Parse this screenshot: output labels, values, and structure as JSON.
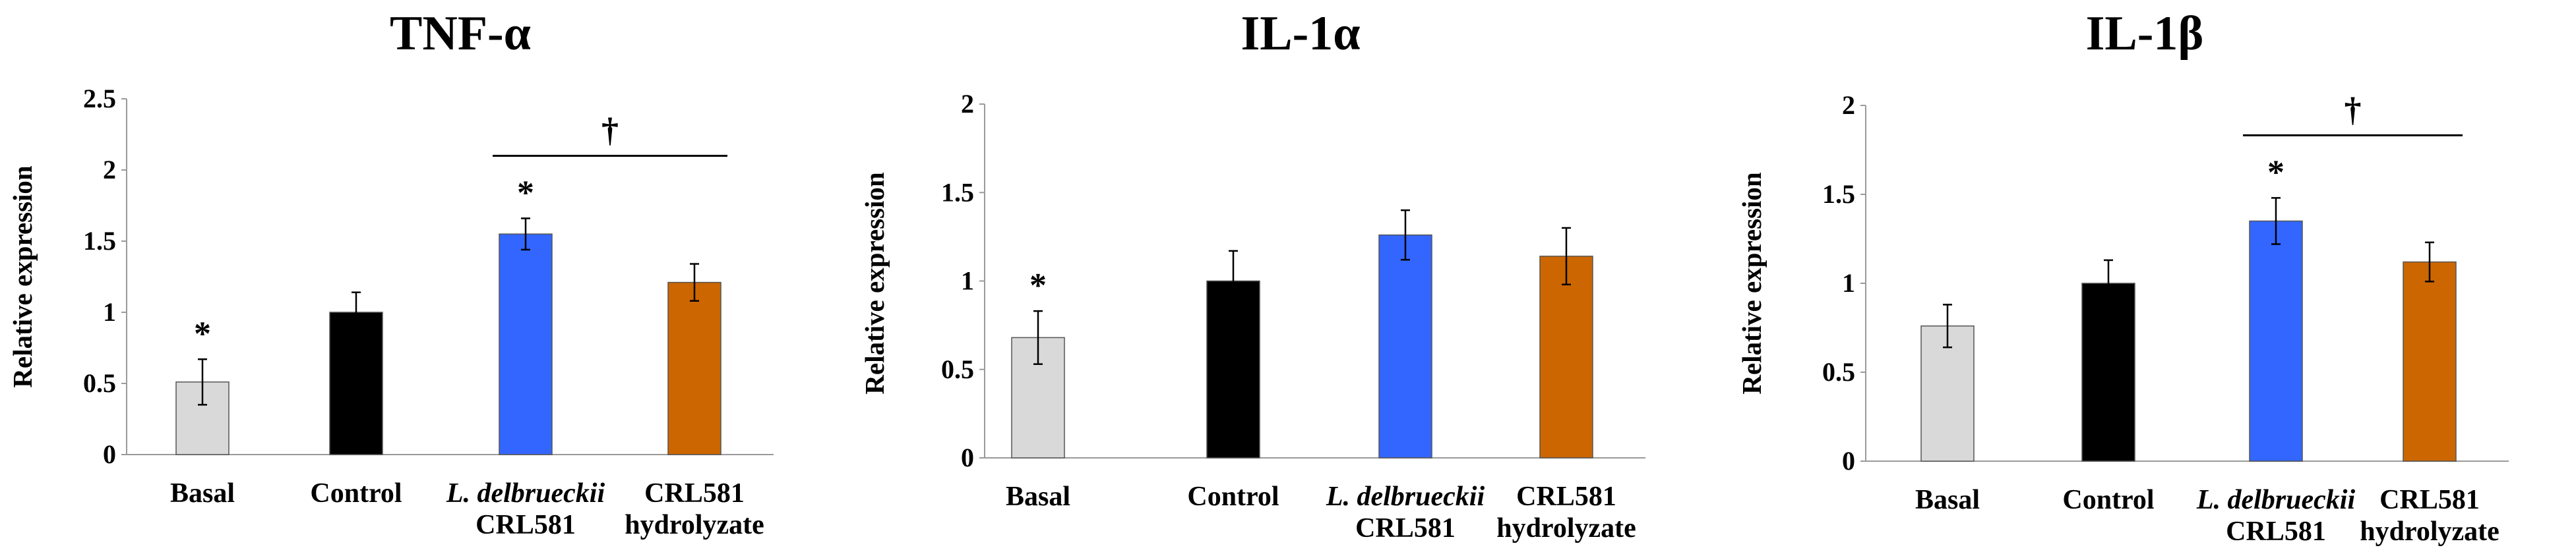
{
  "chart_data": [
    {
      "type": "bar",
      "title": "TNF-α",
      "xlabel": "",
      "ylabel": "Relative expression",
      "ylim": [
        0,
        2.5
      ],
      "yticks": [
        "0",
        "0.5",
        "1",
        "1.5",
        "2",
        "2.5"
      ],
      "categories": [
        [
          "Basal"
        ],
        [
          "Control"
        ],
        [
          "L. delbrueckii",
          "CRL581"
        ],
        [
          "CRL581",
          "hydrolyzate"
        ]
      ],
      "italic_first_line": [
        false,
        false,
        true,
        false
      ],
      "values": [
        0.51,
        1.0,
        1.55,
        1.21
      ],
      "errors": [
        0.16,
        0.14,
        0.11,
        0.13
      ],
      "colors": [
        "#d9d9d9",
        "#000000",
        "#3366ff",
        "#cc6600"
      ],
      "asterisks": [
        "*",
        "",
        "*",
        ""
      ],
      "bracket": {
        "symbol": "†",
        "from": 2,
        "to": 3
      }
    },
    {
      "type": "bar",
      "title": "IL-1α",
      "xlabel": "",
      "ylabel": "Relative expression",
      "ylim": [
        0,
        2
      ],
      "yticks": [
        "0",
        "0.5",
        "1",
        "1.5",
        "2"
      ],
      "categories": [
        [
          "Basal"
        ],
        [
          "Control"
        ],
        [
          "L. delbrueckii",
          "CRL581"
        ],
        [
          "CRL581",
          "hydrolyzate"
        ]
      ],
      "italic_first_line": [
        false,
        false,
        true,
        false
      ],
      "values": [
        0.68,
        1.0,
        1.26,
        1.14
      ],
      "errors": [
        0.15,
        0.17,
        0.14,
        0.16
      ],
      "colors": [
        "#d9d9d9",
        "#000000",
        "#3366ff",
        "#cc6600"
      ],
      "asterisks": [
        "*",
        "",
        "",
        ""
      ],
      "bracket": null
    },
    {
      "type": "bar",
      "title": "IL-1β",
      "xlabel": "",
      "ylabel": "Relative expression",
      "ylim": [
        0,
        2
      ],
      "yticks": [
        "0",
        "0.5",
        "1",
        "1.5",
        "2"
      ],
      "categories": [
        [
          "Basal"
        ],
        [
          "Control"
        ],
        [
          "L. delbrueckii",
          "CRL581"
        ],
        [
          "CRL581",
          "hydrolyzate"
        ]
      ],
      "italic_first_line": [
        false,
        false,
        true,
        false
      ],
      "values": [
        0.76,
        1.0,
        1.35,
        1.12
      ],
      "errors": [
        0.12,
        0.13,
        0.13,
        0.11
      ],
      "colors": [
        "#d9d9d9",
        "#000000",
        "#3366ff",
        "#cc6600"
      ],
      "asterisks": [
        "",
        "",
        "*",
        ""
      ],
      "bracket": {
        "symbol": "†",
        "from": 2,
        "to": 3
      }
    }
  ]
}
